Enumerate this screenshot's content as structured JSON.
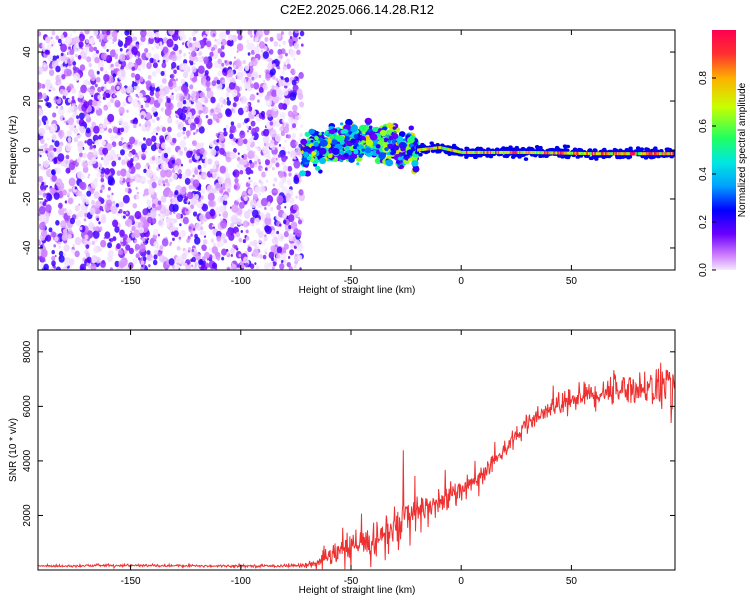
{
  "title": "C2E2.2025.066.14.28.R12",
  "colors": {
    "snr_line": "#ee3030",
    "scatter_noise": "#8a3cff",
    "spectrum_band_core": "#1a1aff",
    "spectrum_band_hot": "#ff2020",
    "colormap": [
      "#f4e8ff",
      "#d080ff",
      "#6a00ff",
      "#0000ff",
      "#00a0ff",
      "#00e8e0",
      "#20ff60",
      "#c8ff00",
      "#ffb000",
      "#ff3030",
      "#ff0050"
    ]
  },
  "chart_data": [
    {
      "type": "heatmap",
      "title": "",
      "xlabel": "Height of straight line (km)",
      "ylabel": "Frequency (Hz)",
      "xlim": [
        -192,
        97
      ],
      "ylim": [
        -49,
        49
      ],
      "x_ticks": [
        -150,
        -100,
        -50,
        0,
        50
      ],
      "y_ticks": [
        -40,
        -20,
        0,
        20,
        40
      ],
      "colorbar": {
        "label": "Normalized spectral amplitude",
        "range": [
          0,
          1
        ],
        "ticks": [
          "0.0",
          "0.2",
          "0.4",
          "0.6",
          "0.8"
        ]
      },
      "regions": [
        {
          "x_range": [
            -192,
            -72
          ],
          "y_range": [
            -49,
            49
          ],
          "amplitude": [
            0.0,
            0.15
          ]
        },
        {
          "x_range": [
            -72,
            -20
          ],
          "y_range": [
            -12,
            8
          ],
          "amplitude": [
            0.1,
            0.95
          ]
        },
        {
          "x_range": [
            -20,
            97
          ],
          "y_range": [
            -3,
            0
          ],
          "amplitude": [
            0.5,
            1.0
          ]
        }
      ],
      "band_center": [
        [
          -70,
          0
        ],
        [
          -60,
          2
        ],
        [
          -50,
          3
        ],
        [
          -40,
          4
        ],
        [
          -30,
          1
        ],
        [
          -20,
          0
        ],
        [
          -10,
          1
        ],
        [
          0,
          -1
        ],
        [
          10,
          -1
        ],
        [
          30,
          -1
        ],
        [
          60,
          -1.5
        ],
        [
          97,
          -1.5
        ]
      ]
    },
    {
      "type": "line",
      "title": "",
      "xlabel": "Height of straight line (km)",
      "ylabel": "SNR (10 * v/v)",
      "xlim": [
        -192,
        97
      ],
      "ylim": [
        0,
        8800
      ],
      "x_ticks": [
        -150,
        -100,
        -50,
        0,
        50
      ],
      "y_ticks": [
        2000,
        4000,
        6000,
        8000
      ],
      "series": [
        {
          "x": [
            -192,
            -180,
            -160,
            -140,
            -120,
            -100,
            -80,
            -72,
            -65,
            -60,
            -55,
            -50,
            -45,
            -40,
            -35,
            -30,
            -25,
            -20,
            -15,
            -10,
            -5,
            0,
            5,
            10,
            15,
            20,
            25,
            30,
            35,
            40,
            45,
            50,
            55,
            60,
            65,
            70,
            75,
            80,
            85,
            90,
            95,
            97
          ],
          "y": [
            150,
            150,
            170,
            160,
            150,
            150,
            150,
            170,
            250,
            450,
            700,
            800,
            950,
            1100,
            1250,
            1500,
            1900,
            2000,
            2300,
            2500,
            2700,
            3000,
            3200,
            3500,
            4000,
            4500,
            4900,
            5300,
            5600,
            5900,
            6100,
            6250,
            6400,
            6450,
            6550,
            6600,
            6700,
            6650,
            6700,
            6700,
            6800,
            6900
          ],
          "noise": [
            30,
            40,
            40,
            40,
            40,
            40,
            40,
            60,
            150,
            300,
            450,
            550,
            600,
            650,
            700,
            800,
            900,
            700,
            600,
            500,
            450,
            400,
            350,
            300,
            300,
            300,
            300,
            300,
            300,
            320,
            350,
            380,
            400,
            420,
            450,
            480,
            500,
            520,
            560,
            700,
            650,
            600
          ]
        }
      ]
    }
  ]
}
